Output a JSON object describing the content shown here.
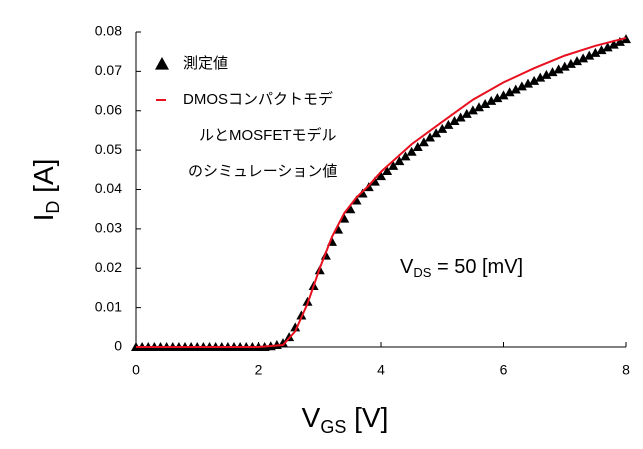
{
  "chart_data": {
    "type": "scatter",
    "xlabel": {
      "main": "V",
      "sub": "GS",
      "rest": " [V]"
    },
    "ylabel": {
      "main": "I",
      "sub": "D",
      "rest": " [A]"
    },
    "annotation": {
      "main": "V",
      "sub": "DS",
      "rest": " = 50 [mV]"
    },
    "xlim": [
      0,
      8
    ],
    "xticks": [
      0,
      2,
      4,
      6,
      8
    ],
    "ylim": [
      0,
      0.08
    ],
    "yticks": [
      0,
      0.01,
      0.02,
      0.03,
      0.04,
      0.05,
      0.06,
      0.07,
      0.08
    ],
    "grid": false,
    "series": [
      {
        "name": [
          "測定値"
        ],
        "type": "scatter",
        "marker": "triangle",
        "color": "#000000",
        "x": [
          0,
          0.1,
          0.2,
          0.3,
          0.4,
          0.5,
          0.6,
          0.7,
          0.8,
          0.9,
          1,
          1.1,
          1.2,
          1.3,
          1.4,
          1.5,
          1.6,
          1.7,
          1.8,
          1.9,
          2,
          2.1,
          2.2,
          2.3,
          2.4,
          2.5,
          2.6,
          2.7,
          2.8,
          2.9,
          3,
          3.1,
          3.2,
          3.3,
          3.4,
          3.5,
          3.6,
          3.7,
          3.8,
          3.9,
          4,
          4.1,
          4.2,
          4.3,
          4.4,
          4.5,
          4.6,
          4.7,
          4.8,
          4.9,
          5,
          5.1,
          5.2,
          5.3,
          5.4,
          5.5,
          5.6,
          5.7,
          5.8,
          5.9,
          6,
          6.1,
          6.2,
          6.3,
          6.4,
          6.5,
          6.6,
          6.7,
          6.8,
          6.9,
          7,
          7.1,
          7.2,
          7.3,
          7.4,
          7.5,
          7.6,
          7.7,
          7.8,
          7.9,
          8
        ],
        "values": [
          0,
          0,
          0,
          0,
          0,
          0,
          0,
          0,
          0,
          0,
          0,
          0,
          0,
          0,
          0,
          0,
          0,
          0,
          0,
          0,
          0,
          0,
          0.0002,
          0.0005,
          0.001,
          0.0025,
          0.005,
          0.008,
          0.0115,
          0.0155,
          0.0195,
          0.0232,
          0.0267,
          0.0298,
          0.0326,
          0.035,
          0.0372,
          0.039,
          0.0406,
          0.042,
          0.0434,
          0.0447,
          0.046,
          0.0472,
          0.0484,
          0.0496,
          0.0508,
          0.052,
          0.0532,
          0.0543,
          0.0554,
          0.0564,
          0.0574,
          0.0583,
          0.0592,
          0.0601,
          0.0609,
          0.0617,
          0.0625,
          0.0632,
          0.0639,
          0.0647,
          0.0654,
          0.0662,
          0.0669,
          0.0676,
          0.0684,
          0.0691,
          0.0698,
          0.0705,
          0.0712,
          0.0719,
          0.0726,
          0.0733,
          0.074,
          0.0747,
          0.0754,
          0.0761,
          0.0768,
          0.0775,
          0.0782
        ]
      },
      {
        "name": [
          "DMOSコンパクトモデ",
          "ルとMOSFETモデル",
          "のシミュレーション値"
        ],
        "type": "line",
        "color": "#e8101e",
        "x": [
          0,
          2,
          2.4,
          2.6,
          2.8,
          3,
          3.2,
          3.4,
          3.6,
          3.8,
          4,
          4.5,
          5,
          5.5,
          6,
          6.5,
          7,
          7.5,
          8
        ],
        "values": [
          0,
          0,
          0.0005,
          0.004,
          0.011,
          0.02,
          0.028,
          0.034,
          0.038,
          0.041,
          0.0445,
          0.0515,
          0.0572,
          0.0628,
          0.0672,
          0.0708,
          0.074,
          0.0765,
          0.0785
        ]
      }
    ]
  }
}
